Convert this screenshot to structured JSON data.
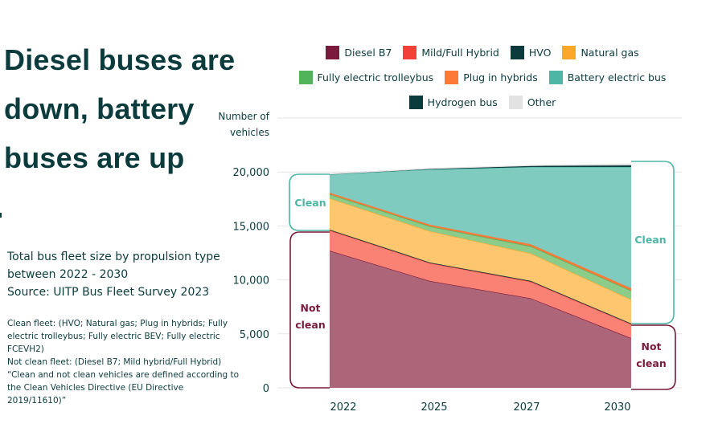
{
  "page": {
    "title": "Diesel buses are down, battery buses are up",
    "subtitle_lines": [
      "Total bus fleet size by propulsion type",
      "between 2022 - 2030",
      "Source: UITP Bus Fleet Survey 2023"
    ],
    "notes": [
      "Clean fleet: (HVO; Natural gas; Plug in hybrids; Fully electric trolleybus; Fully electric BEV; Fully electric FCEVH2)",
      "Not clean fleet: (Diesel B7; Mild hybrid/Full Hybrid)",
      "“Clean and not clean vehicles are defined according to the Clean Vehicles Directive (EU Directive 2019/11610)”"
    ]
  },
  "annotations": {
    "clean_label": "Clean",
    "not_clean_label_lines": [
      "Not",
      "clean"
    ],
    "clean_color": "#4db6a5",
    "not_clean_color": "#7b1a3c"
  },
  "chart_data": {
    "type": "area",
    "stacked": true,
    "title": "Diesel buses are down, battery buses are up",
    "xlabel": "",
    "ylabel": "Number of vehicles",
    "ylabel_lines": [
      "Number of",
      "vehicles"
    ],
    "categories": [
      "2022",
      "2025",
      "2027",
      "2030"
    ],
    "ylim": [
      0,
      25000
    ],
    "yticks": [
      0,
      5000,
      10000,
      15000,
      20000
    ],
    "ytick_labels": [
      "0",
      "5,000",
      "10,000",
      "15,000",
      "20,000"
    ],
    "grid": true,
    "legend_position": "top",
    "series": [
      {
        "name": "Diesel B7",
        "color": "#7b1a3c",
        "fill": "#ad6679",
        "values": [
          12700,
          9900,
          8300,
          4600
        ]
      },
      {
        "name": "Mild/Full Hybrid",
        "color": "#f2403a",
        "fill": "#f98274",
        "values": [
          1900,
          1650,
          1550,
          1300
        ]
      },
      {
        "name": "HVO",
        "color": "#0b3b3d",
        "fill": "#0b3b3d",
        "values": [
          60,
          60,
          60,
          60
        ]
      },
      {
        "name": "Natural gas",
        "color": "#fba72a",
        "fill": "#fec66f",
        "values": [
          2900,
          2900,
          2550,
          2220
        ]
      },
      {
        "name": "Fully electric trolleybus",
        "color": "#52b35a",
        "fill": "#8ccc8b",
        "values": [
          370,
          450,
          650,
          820
        ]
      },
      {
        "name": "Plug in hybrids",
        "color": "#fb7a38",
        "fill": "#fb7a38",
        "values": [
          150,
          150,
          200,
          230
        ]
      },
      {
        "name": "Battery electric bus",
        "color": "#4db6a5",
        "fill": "#80cbbf",
        "values": [
          1700,
          5130,
          7150,
          11230
        ]
      },
      {
        "name": "Hydrogen bus",
        "color": "#0b3b3d",
        "fill": "#0b3b3d",
        "values": [
          30,
          60,
          100,
          150
        ]
      },
      {
        "name": "Other",
        "color": "#e2e2e2",
        "fill": "#d8d8d8",
        "values": [
          10,
          20,
          40,
          120
        ]
      }
    ]
  },
  "legend_rows": [
    [
      0,
      1,
      2,
      3
    ],
    [
      4,
      5,
      6
    ],
    [
      7,
      8
    ]
  ]
}
